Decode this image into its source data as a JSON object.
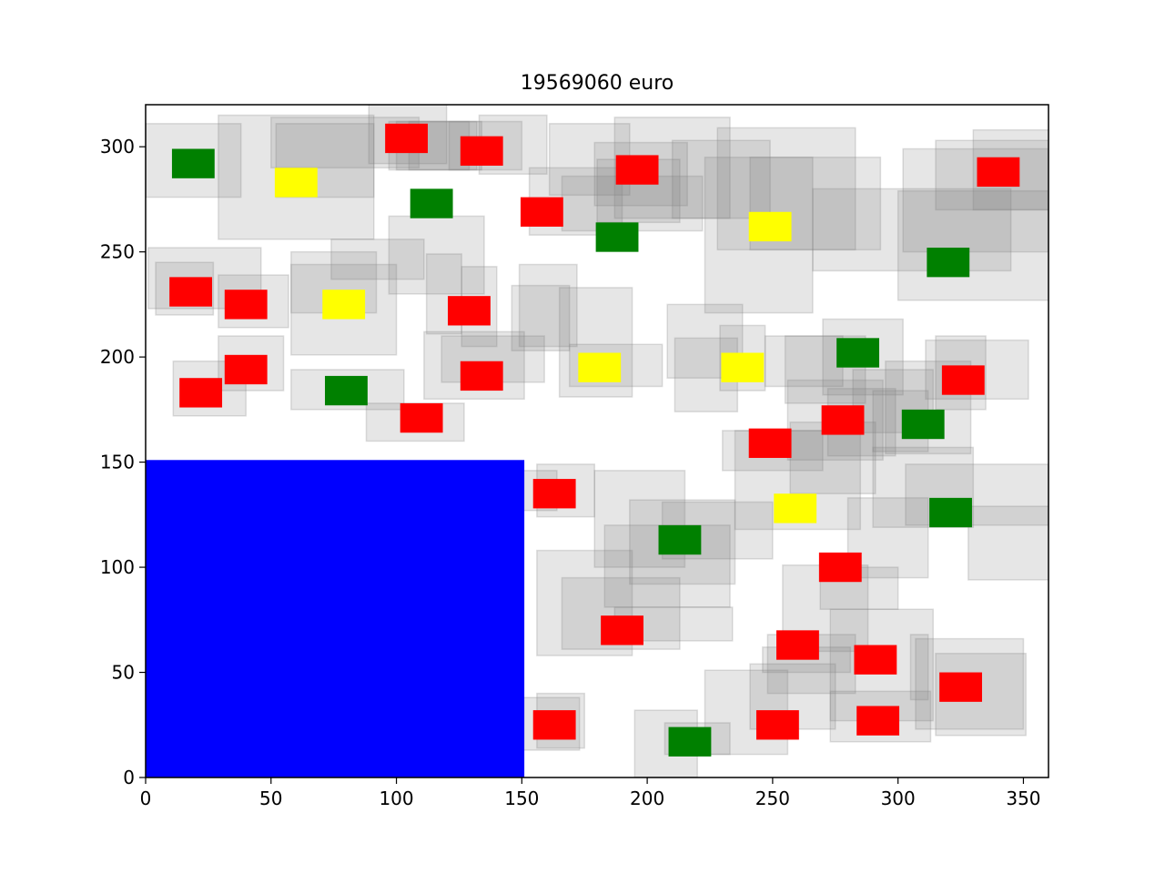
{
  "chart_data": {
    "type": "other",
    "title": "19569060 euro",
    "xlim": [
      0,
      360
    ],
    "ylim": [
      0,
      320
    ],
    "x_ticks": [
      0,
      50,
      100,
      150,
      200,
      250,
      300,
      350
    ],
    "y_ticks": [
      0,
      50,
      100,
      150,
      200,
      250,
      300
    ],
    "colors": {
      "blue": "#0000ff",
      "red": "#ff0000",
      "green": "#008000",
      "yellow": "#ffff00",
      "halo": "#808080"
    },
    "blue_rect": {
      "x0": 0,
      "x1": 151,
      "y0": 0,
      "y1": 151
    },
    "gray_halos": [
      [
        0,
        38,
        276,
        311
      ],
      [
        29,
        91,
        256,
        315
      ],
      [
        50,
        109,
        290,
        314
      ],
      [
        52,
        91,
        276,
        311
      ],
      [
        89,
        120,
        292,
        321
      ],
      [
        97,
        134,
        289,
        312
      ],
      [
        100,
        132,
        289,
        312
      ],
      [
        105,
        129,
        289,
        312
      ],
      [
        121,
        150,
        289,
        312
      ],
      [
        133,
        160,
        287,
        315
      ],
      [
        153,
        190,
        258,
        290
      ],
      [
        166,
        222,
        260,
        286
      ],
      [
        179,
        216,
        272,
        302
      ],
      [
        187,
        233,
        266,
        314
      ],
      [
        161,
        193,
        277,
        311
      ],
      [
        180,
        213,
        264,
        294
      ],
      [
        223,
        266,
        221,
        295
      ],
      [
        241,
        293,
        251,
        295
      ],
      [
        210,
        249,
        266,
        303
      ],
      [
        228,
        283,
        251,
        309
      ],
      [
        266,
        345,
        241,
        280
      ],
      [
        302,
        360,
        250,
        299
      ],
      [
        300,
        360,
        227,
        279
      ],
      [
        315,
        365,
        270,
        303
      ],
      [
        330,
        365,
        270,
        308
      ],
      [
        1,
        46,
        223,
        252
      ],
      [
        29,
        57,
        214,
        239
      ],
      [
        4,
        27,
        220,
        245
      ],
      [
        58,
        100,
        201,
        244
      ],
      [
        58,
        92,
        221,
        250
      ],
      [
        74,
        111,
        237,
        256
      ],
      [
        97,
        135,
        230,
        267
      ],
      [
        112,
        126,
        211,
        249
      ],
      [
        126,
        140,
        205,
        243
      ],
      [
        149,
        172,
        205,
        244
      ],
      [
        165,
        194,
        181,
        233
      ],
      [
        146,
        169,
        203,
        234
      ],
      [
        169,
        206,
        186,
        206
      ],
      [
        208,
        238,
        190,
        225
      ],
      [
        211,
        236,
        174,
        209
      ],
      [
        229,
        247,
        184,
        215
      ],
      [
        247,
        278,
        186,
        210
      ],
      [
        255,
        287,
        178,
        210
      ],
      [
        270,
        302,
        182,
        218
      ],
      [
        282,
        314,
        164,
        194
      ],
      [
        315,
        335,
        175,
        210
      ],
      [
        311,
        352,
        180,
        208
      ],
      [
        11,
        40,
        172,
        198
      ],
      [
        29,
        55,
        184,
        210
      ],
      [
        58,
        103,
        175,
        194
      ],
      [
        88,
        127,
        160,
        178
      ],
      [
        118,
        159,
        188,
        210
      ],
      [
        111,
        151,
        180,
        212
      ],
      [
        144,
        164,
        127,
        146
      ],
      [
        156,
        179,
        124,
        149
      ],
      [
        179,
        215,
        100,
        146
      ],
      [
        193,
        235,
        92,
        132
      ],
      [
        183,
        233,
        81,
        120
      ],
      [
        206,
        250,
        104,
        131
      ],
      [
        230,
        270,
        146,
        165
      ],
      [
        235,
        285,
        118,
        165
      ],
      [
        256,
        294,
        151,
        189
      ],
      [
        257,
        291,
        135,
        169
      ],
      [
        272,
        299,
        153,
        185
      ],
      [
        290,
        312,
        155,
        184
      ],
      [
        295,
        329,
        154,
        198
      ],
      [
        290,
        330,
        119,
        157
      ],
      [
        303,
        360,
        120,
        149
      ],
      [
        328,
        365,
        94,
        129
      ],
      [
        269,
        300,
        80,
        100
      ],
      [
        254,
        288,
        60,
        101
      ],
      [
        280,
        312,
        95,
        133
      ],
      [
        156,
        194,
        58,
        108
      ],
      [
        187,
        234,
        65,
        81
      ],
      [
        166,
        213,
        61,
        95
      ],
      [
        149,
        173,
        13,
        38
      ],
      [
        156,
        175,
        14,
        40
      ],
      [
        195,
        220,
        0,
        32
      ],
      [
        207,
        233,
        11,
        26
      ],
      [
        223,
        256,
        11,
        51
      ],
      [
        241,
        275,
        23,
        54
      ],
      [
        248,
        283,
        40,
        68
      ],
      [
        246,
        281,
        50,
        62
      ],
      [
        273,
        314,
        27,
        80
      ],
      [
        273,
        313,
        17,
        41
      ],
      [
        305,
        312,
        37,
        68
      ],
      [
        307,
        350,
        23,
        66
      ],
      [
        315,
        351,
        20,
        59
      ]
    ],
    "squares": [
      {
        "color": "red",
        "x": 104,
        "y": 304
      },
      {
        "color": "red",
        "x": 134,
        "y": 298
      },
      {
        "color": "red",
        "x": 196,
        "y": 289
      },
      {
        "color": "red",
        "x": 158,
        "y": 269
      },
      {
        "color": "red",
        "x": 340,
        "y": 288
      },
      {
        "color": "red",
        "x": 18,
        "y": 231
      },
      {
        "color": "red",
        "x": 40,
        "y": 225
      },
      {
        "color": "red",
        "x": 129,
        "y": 222
      },
      {
        "color": "red",
        "x": 134,
        "y": 191
      },
      {
        "color": "red",
        "x": 40,
        "y": 194
      },
      {
        "color": "red",
        "x": 22,
        "y": 183
      },
      {
        "color": "red",
        "x": 110,
        "y": 171
      },
      {
        "color": "red",
        "x": 249,
        "y": 159
      },
      {
        "color": "red",
        "x": 278,
        "y": 170
      },
      {
        "color": "red",
        "x": 326,
        "y": 189
      },
      {
        "color": "red",
        "x": 163,
        "y": 135
      },
      {
        "color": "red",
        "x": 277,
        "y": 100
      },
      {
        "color": "red",
        "x": 190,
        "y": 70
      },
      {
        "color": "red",
        "x": 260,
        "y": 63
      },
      {
        "color": "red",
        "x": 291,
        "y": 56
      },
      {
        "color": "red",
        "x": 325,
        "y": 43
      },
      {
        "color": "red",
        "x": 163,
        "y": 25
      },
      {
        "color": "red",
        "x": 252,
        "y": 25
      },
      {
        "color": "red",
        "x": 292,
        "y": 27
      },
      {
        "color": "green",
        "x": 19,
        "y": 292
      },
      {
        "color": "green",
        "x": 114,
        "y": 273
      },
      {
        "color": "green",
        "x": 188,
        "y": 257
      },
      {
        "color": "green",
        "x": 320,
        "y": 245
      },
      {
        "color": "green",
        "x": 80,
        "y": 184
      },
      {
        "color": "green",
        "x": 284,
        "y": 202
      },
      {
        "color": "green",
        "x": 310,
        "y": 168
      },
      {
        "color": "green",
        "x": 213,
        "y": 113
      },
      {
        "color": "green",
        "x": 321,
        "y": 126
      },
      {
        "color": "green",
        "x": 217,
        "y": 17
      },
      {
        "color": "yellow",
        "x": 60,
        "y": 283
      },
      {
        "color": "yellow",
        "x": 249,
        "y": 262
      },
      {
        "color": "yellow",
        "x": 79,
        "y": 225
      },
      {
        "color": "yellow",
        "x": 181,
        "y": 195
      },
      {
        "color": "yellow",
        "x": 238,
        "y": 195
      },
      {
        "color": "yellow",
        "x": 259,
        "y": 128
      }
    ]
  }
}
